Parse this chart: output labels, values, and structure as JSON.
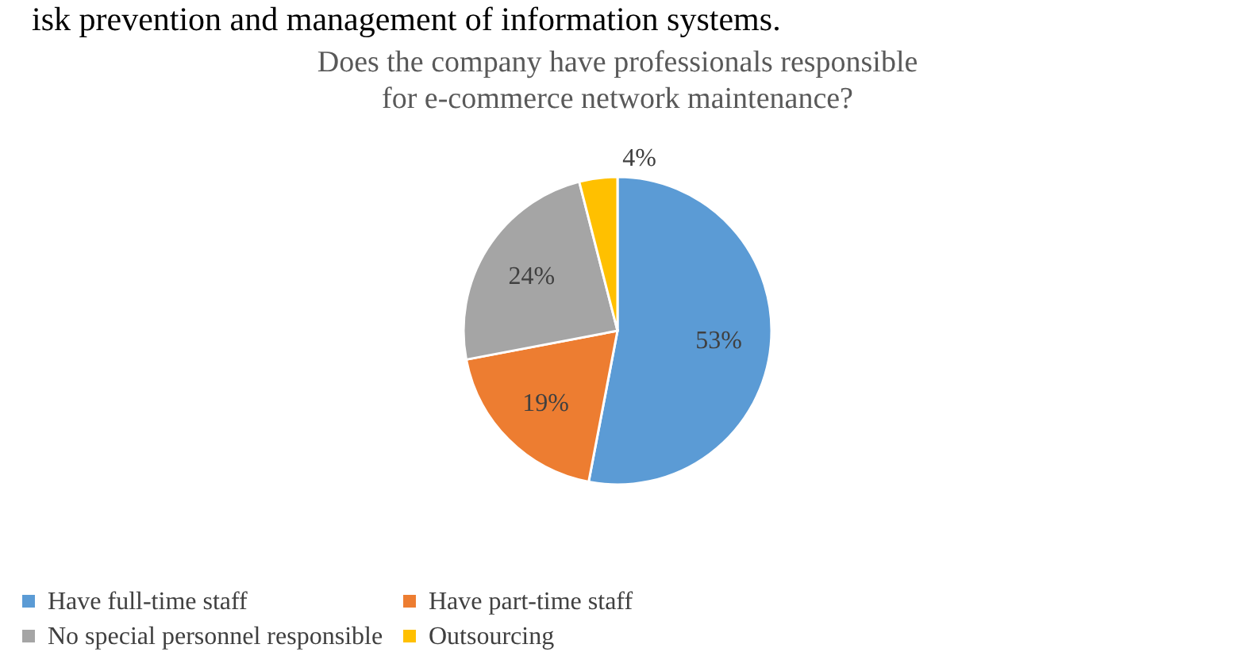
{
  "chart_data": {
    "type": "pie",
    "title": "Does the company have professionals responsible for e-commerce network maintenance?",
    "annotations": [
      "isk prevention and management of information systems."
    ],
    "categories": [
      "Have full-time staff",
      "Have part-time staff",
      "No special personnel responsible",
      "Outsourcing"
    ],
    "values": [
      53,
      19,
      24,
      4
    ],
    "value_labels": [
      "53%",
      "19%",
      "24%",
      "4%"
    ],
    "colors": [
      "#5b9bd5",
      "#ed7d31",
      "#a5a5a5",
      "#ffc000"
    ],
    "legend": "bottom"
  }
}
